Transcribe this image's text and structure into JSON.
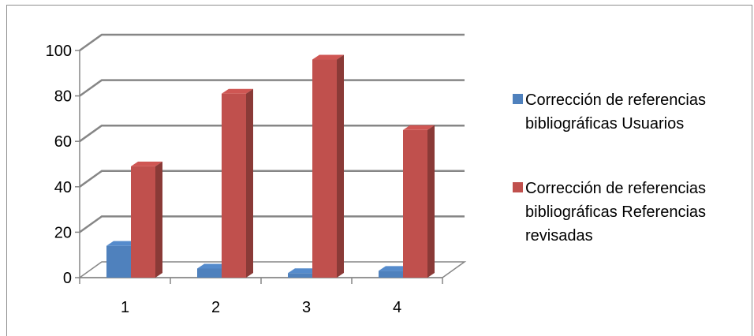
{
  "chart_data": {
    "type": "bar",
    "style": "3d-clustered-column",
    "categories": [
      "1",
      "2",
      "3",
      "4"
    ],
    "series": [
      {
        "name": "Corrección de referencias bibliográficas Usuarios",
        "color": "#4f81bd",
        "values": [
          14,
          4,
          2,
          3
        ]
      },
      {
        "name": "Corrección de referencias bibliográficas Referencias revisadas",
        "color": "#c0504d",
        "values": [
          49,
          81,
          96,
          65
        ]
      }
    ],
    "y_ticks": [
      "0",
      "20",
      "40",
      "60",
      "80",
      "100"
    ],
    "ylim": [
      0,
      100
    ],
    "grid": true,
    "legend_position": "right",
    "legend": [
      {
        "lines": [
          "Corrección de referencias",
          "bibliográficas Usuarios"
        ]
      },
      {
        "lines": [
          "Corrección de referencias",
          "bibliográficas Referencias",
          "revisadas"
        ]
      }
    ]
  }
}
